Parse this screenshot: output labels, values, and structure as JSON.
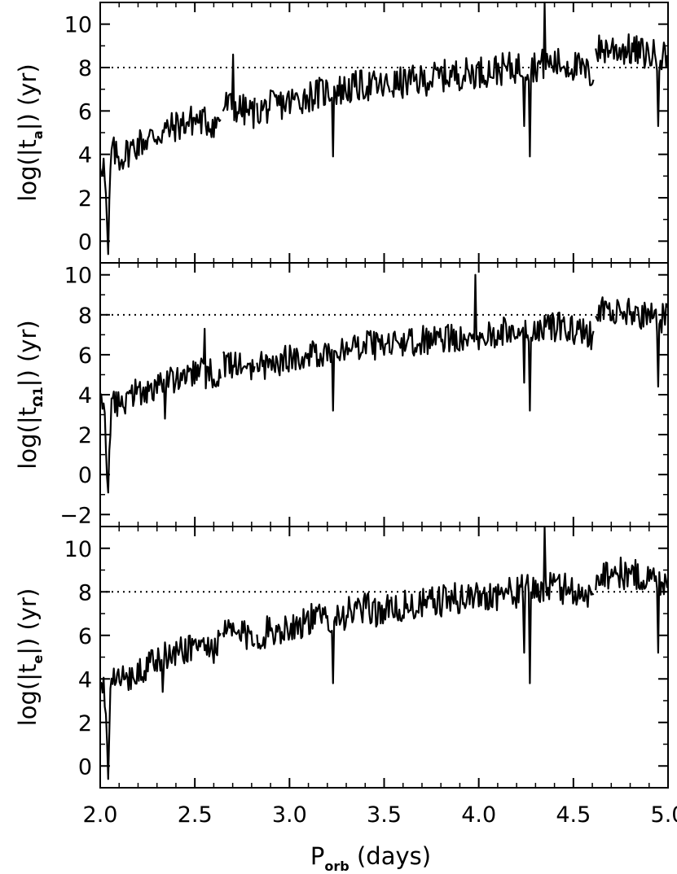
{
  "chart_data": {
    "type": "line",
    "layout": "3 vertically stacked panels sharing the x axis",
    "xlabel": {
      "main": "P",
      "sub": "orb",
      "rest": " (days)"
    },
    "xlim": [
      2.0,
      5.0
    ],
    "xticks": [
      "2.0",
      "2.5",
      "3.0",
      "3.5",
      "4.0",
      "4.5",
      "5.0"
    ],
    "grid": false,
    "line_color": "#000000",
    "reference_line": {
      "y": 8,
      "style": "dotted"
    },
    "panels": [
      {
        "ylabel": {
          "pre": "log(|t",
          "sub": "a",
          "post": "|)  (yr)"
        },
        "ylim": [
          -1,
          11
        ],
        "yticks": [
          "0",
          "2",
          "4",
          "6",
          "8",
          "10"
        ],
        "gaps": [
          2.64,
          2.82,
          3.53,
          4.61
        ],
        "x": [
          2.0,
          2.02,
          2.04,
          2.06,
          2.1,
          2.2,
          2.3,
          2.4,
          2.5,
          2.62,
          2.66,
          2.8,
          2.9,
          3.0,
          3.1,
          3.2,
          3.3,
          3.4,
          3.5,
          3.6,
          3.7,
          3.8,
          3.9,
          4.0,
          4.1,
          4.2,
          4.3,
          4.4,
          4.5,
          4.6,
          4.62,
          4.7,
          4.8,
          4.9,
          5.0
        ],
        "y": [
          3.7,
          3.5,
          0.0,
          4.2,
          3.8,
          4.5,
          4.9,
          5.3,
          5.6,
          5.4,
          6.3,
          5.9,
          6.2,
          6.4,
          6.7,
          6.9,
          7.0,
          7.2,
          7.1,
          7.3,
          7.4,
          7.6,
          7.7,
          7.8,
          7.9,
          8.0,
          8.1,
          8.2,
          8.1,
          7.6,
          8.8,
          8.9,
          8.8,
          8.6,
          8.5
        ],
        "spikes": [
          {
            "x": 2.04,
            "y": -0.6
          },
          {
            "x": 2.7,
            "y": 8.6
          },
          {
            "x": 3.23,
            "y": 3.9
          },
          {
            "x": 4.24,
            "y": 5.3
          },
          {
            "x": 4.27,
            "y": 3.9
          },
          {
            "x": 4.35,
            "y": 11.0
          },
          {
            "x": 4.95,
            "y": 5.3
          }
        ]
      },
      {
        "ylabel": {
          "pre": "log(|t",
          "sub": "Ω1",
          "post": "|)  (yr)"
        },
        "ylim": [
          -2.6,
          10.6
        ],
        "yticks": [
          "−2",
          "0",
          "2",
          "4",
          "6",
          "8",
          "10"
        ],
        "gaps": [
          2.64,
          2.82,
          3.53,
          4.61
        ],
        "x": [
          2.0,
          2.02,
          2.04,
          2.06,
          2.1,
          2.2,
          2.3,
          2.4,
          2.5,
          2.62,
          2.66,
          2.8,
          2.9,
          3.0,
          3.1,
          3.2,
          3.3,
          3.4,
          3.5,
          3.6,
          3.7,
          3.8,
          3.9,
          4.0,
          4.1,
          4.2,
          4.3,
          4.4,
          4.5,
          4.6,
          4.62,
          4.7,
          4.8,
          4.9,
          5.0
        ],
        "y": [
          3.4,
          3.2,
          -0.5,
          3.9,
          3.5,
          4.1,
          4.5,
          4.8,
          5.1,
          5.0,
          5.6,
          5.3,
          5.6,
          5.8,
          6.0,
          6.2,
          6.3,
          6.5,
          6.4,
          6.6,
          6.7,
          6.8,
          6.9,
          7.0,
          7.1,
          7.2,
          7.3,
          7.4,
          7.3,
          6.9,
          8.1,
          8.2,
          8.1,
          7.9,
          7.8
        ],
        "spikes": [
          {
            "x": 2.04,
            "y": -0.9
          },
          {
            "x": 2.34,
            "y": 2.8
          },
          {
            "x": 2.55,
            "y": 7.3
          },
          {
            "x": 3.23,
            "y": 3.2
          },
          {
            "x": 3.98,
            "y": 10.0
          },
          {
            "x": 4.24,
            "y": 4.6
          },
          {
            "x": 4.27,
            "y": 3.2
          },
          {
            "x": 4.95,
            "y": 4.4
          }
        ]
      },
      {
        "ylabel": {
          "pre": "log(|t",
          "sub": "e",
          "post": "|)  (yr)"
        },
        "ylim": [
          -1,
          11
        ],
        "yticks": [
          "0",
          "2",
          "4",
          "6",
          "8",
          "10"
        ],
        "gaps": [
          2.64,
          2.82,
          3.53,
          4.61
        ],
        "x": [
          2.0,
          2.02,
          2.04,
          2.06,
          2.1,
          2.2,
          2.3,
          2.4,
          2.5,
          2.62,
          2.66,
          2.8,
          2.9,
          3.0,
          3.1,
          3.2,
          3.3,
          3.4,
          3.5,
          3.6,
          3.7,
          3.8,
          3.9,
          4.0,
          4.1,
          4.2,
          4.3,
          4.4,
          4.5,
          4.6,
          4.62,
          4.7,
          4.8,
          4.9,
          5.0
        ],
        "y": [
          3.6,
          3.4,
          0.0,
          4.1,
          3.8,
          4.4,
          4.8,
          5.2,
          5.6,
          5.4,
          6.2,
          5.9,
          6.2,
          6.4,
          6.7,
          6.8,
          7.0,
          7.2,
          7.1,
          7.3,
          7.4,
          7.6,
          7.7,
          7.8,
          7.9,
          8.0,
          8.1,
          8.2,
          8.1,
          7.6,
          8.8,
          8.9,
          8.8,
          8.6,
          8.5
        ],
        "spikes": [
          {
            "x": 2.04,
            "y": -0.6
          },
          {
            "x": 2.33,
            "y": 3.4
          },
          {
            "x": 3.23,
            "y": 3.8
          },
          {
            "x": 4.24,
            "y": 5.2
          },
          {
            "x": 4.27,
            "y": 3.8
          },
          {
            "x": 4.35,
            "y": 11.0
          },
          {
            "x": 4.95,
            "y": 5.2
          }
        ]
      }
    ]
  }
}
